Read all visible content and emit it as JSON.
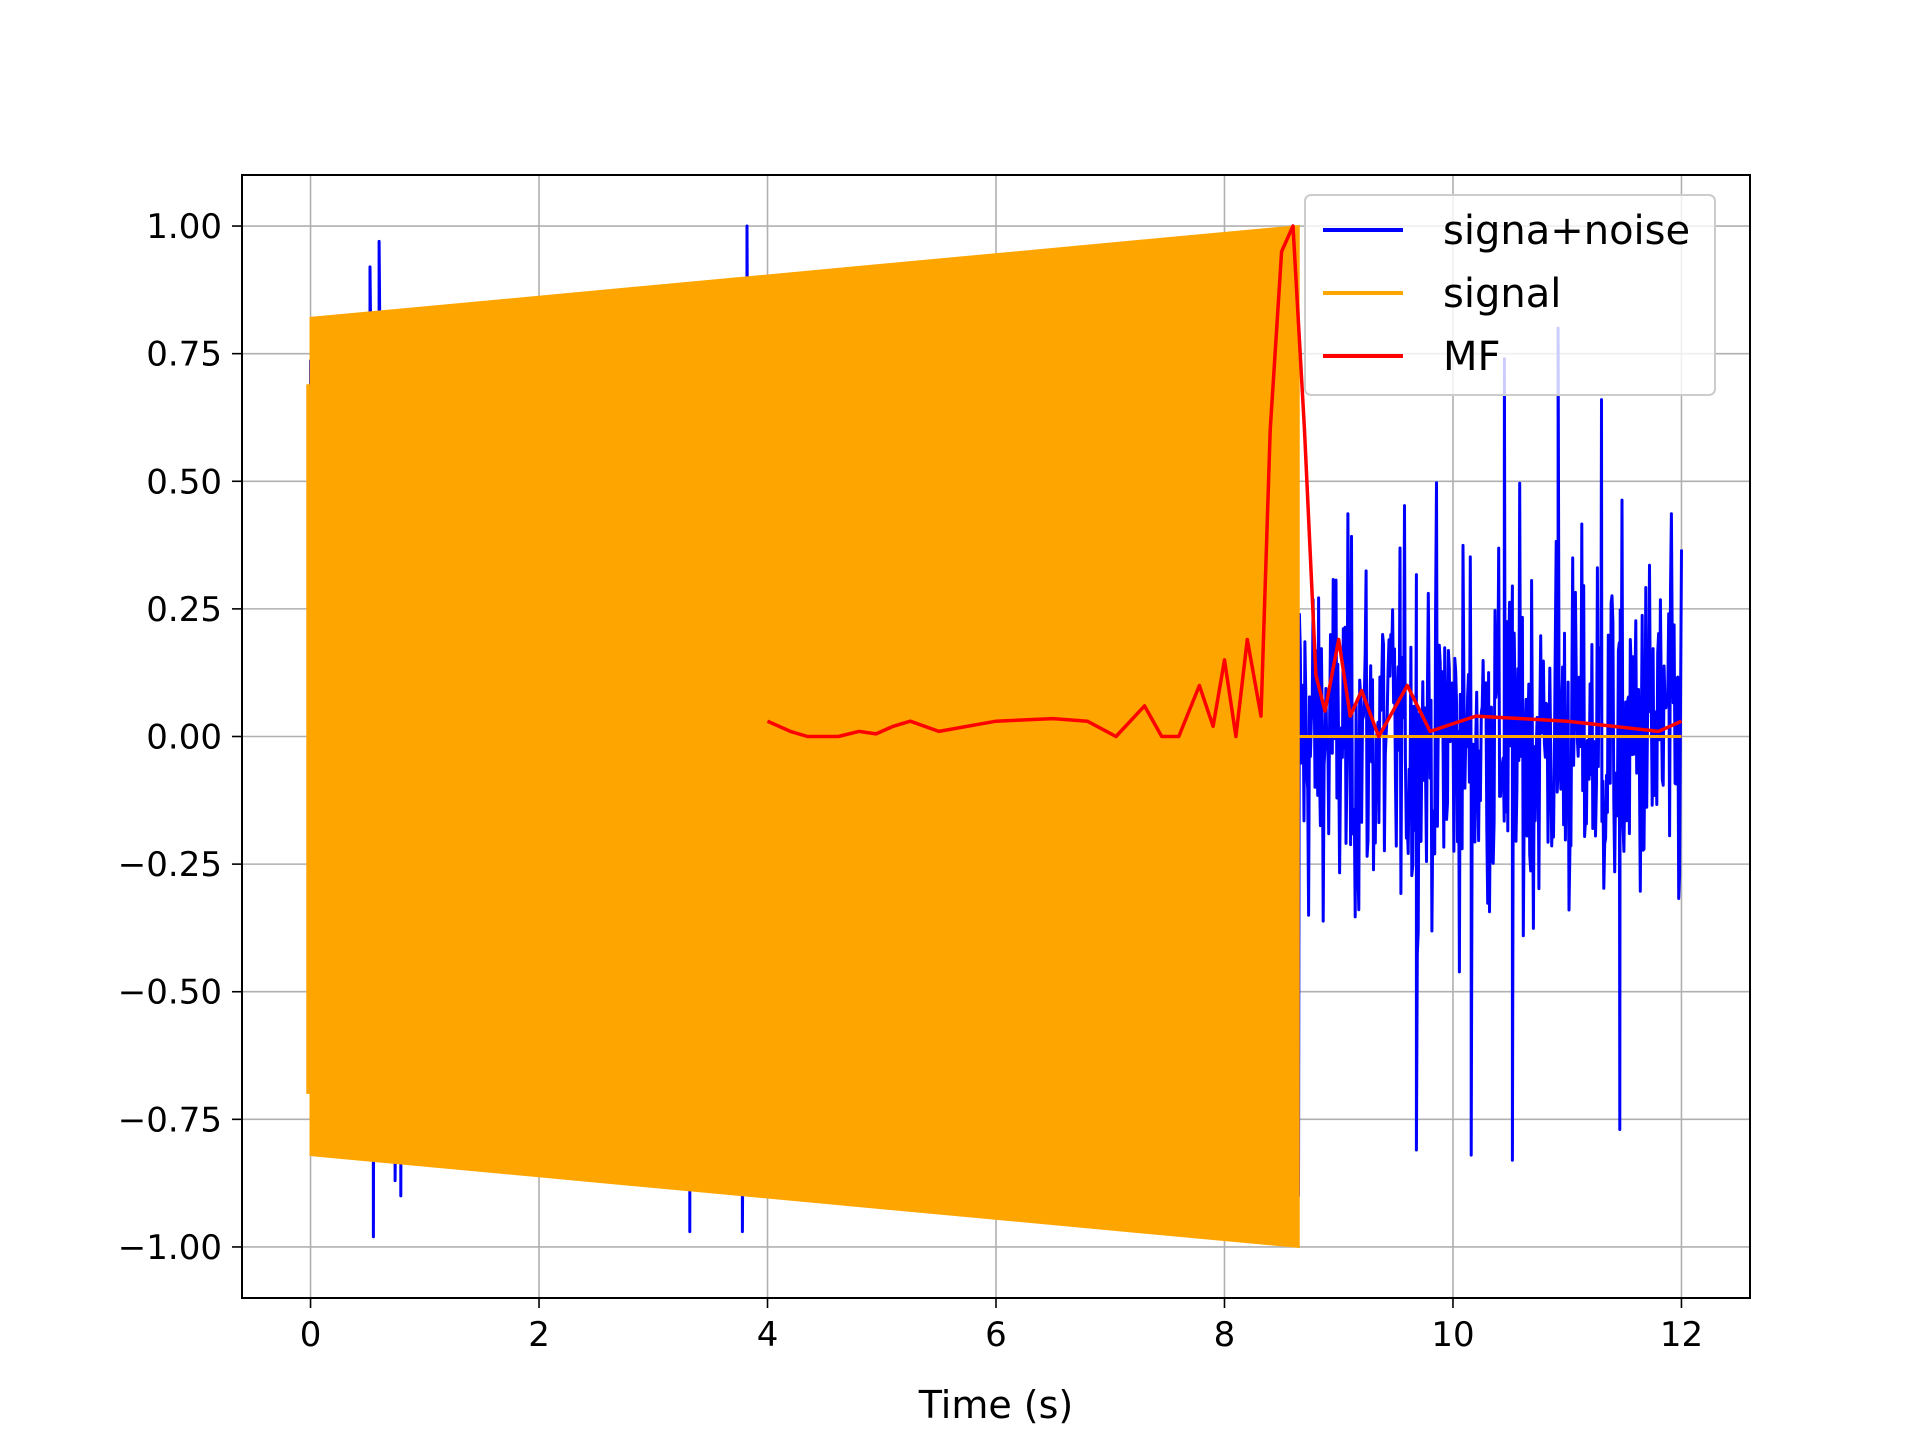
{
  "chart_data": {
    "type": "line",
    "title": "",
    "xlabel": "Time (s)",
    "ylabel": "",
    "xlim": [
      -0.6,
      12.6
    ],
    "ylim": [
      -1.1,
      1.1
    ],
    "grid": true,
    "legend_position": "top-right",
    "xticks": [
      0,
      2,
      4,
      6,
      8,
      10,
      12
    ],
    "xtick_labels": [
      "0",
      "2",
      "4",
      "6",
      "8",
      "10",
      "12"
    ],
    "yticks": [
      1.0,
      0.75,
      0.5,
      0.25,
      0.0,
      -0.25,
      -0.5,
      -0.75,
      -1.0
    ],
    "ytick_labels": [
      "1.00",
      "0.75",
      "0.50",
      "0.25",
      "0.00",
      "−0.25",
      "−0.50",
      "−0.75",
      "−1.00"
    ],
    "series": [
      {
        "name": "signa+noise",
        "color": "#0000ff",
        "description_values": {
          "x_start": 0.0,
          "x_end": 12.0,
          "noise_amplitude": 0.5,
          "spikes": [
            {
              "x": 0.52,
              "y": 0.92
            },
            {
              "x": 0.55,
              "y": -0.98
            },
            {
              "x": 0.6,
              "y": 0.97
            },
            {
              "x": 0.74,
              "y": -0.87
            },
            {
              "x": 0.79,
              "y": -0.9
            },
            {
              "x": 3.32,
              "y": -0.97
            },
            {
              "x": 3.78,
              "y": -0.97
            },
            {
              "x": 3.82,
              "y": 1.0
            },
            {
              "x": 10.45,
              "y": 0.74
            },
            {
              "x": 10.92,
              "y": 0.8
            },
            {
              "x": 9.68,
              "y": -0.81
            },
            {
              "x": 10.16,
              "y": -0.82
            },
            {
              "x": 10.52,
              "y": -0.83
            },
            {
              "x": 11.3,
              "y": 0.66
            },
            {
              "x": 11.46,
              "y": -0.77
            }
          ]
        }
      },
      {
        "name": "signal",
        "color": "#ffa500",
        "envelope": {
          "x": [
            0.0,
            8.65
          ],
          "upper": [
            0.82,
            1.0
          ],
          "lower": [
            -0.82,
            -1.0
          ]
        },
        "after_end_value": 0.0
      },
      {
        "name": "MF",
        "color": "#ff0000",
        "x": [
          4.0,
          4.2,
          4.35,
          4.5,
          4.62,
          4.8,
          4.95,
          5.1,
          5.25,
          5.5,
          6.0,
          6.5,
          6.8,
          7.05,
          7.3,
          7.45,
          7.6,
          7.78,
          7.9,
          8.0,
          8.1,
          8.2,
          8.32,
          8.4,
          8.5,
          8.6,
          8.7,
          8.8,
          8.88,
          9.0,
          9.1,
          9.2,
          9.35,
          9.6,
          9.8,
          10.2,
          10.6,
          11.0,
          11.4,
          11.8,
          12.0
        ],
        "y": [
          0.03,
          0.01,
          0.0,
          0.0,
          0.0,
          0.01,
          0.005,
          0.02,
          0.03,
          0.01,
          0.03,
          0.035,
          0.03,
          0.0,
          0.06,
          0.0,
          0.0,
          0.1,
          0.02,
          0.15,
          0.0,
          0.19,
          0.04,
          0.6,
          0.95,
          1.0,
          0.6,
          0.12,
          0.05,
          0.19,
          0.04,
          0.09,
          0.0,
          0.1,
          0.01,
          0.04,
          0.035,
          0.03,
          0.02,
          0.01,
          0.03
        ]
      }
    ]
  }
}
